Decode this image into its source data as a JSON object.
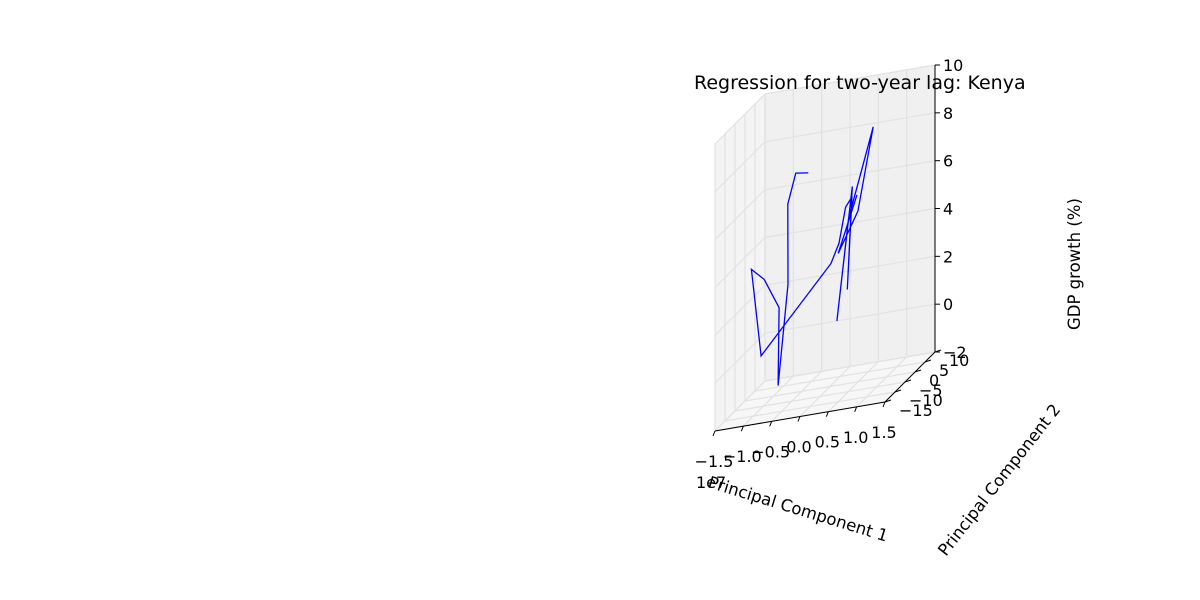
{
  "title": "Regression for two-year lag: Kenya",
  "chart_data": {
    "type": "line",
    "projection": "3d",
    "title": "Regression for two-year lag: Kenya",
    "xlabel": "Principal Component 1",
    "ylabel": "Principal Component 2",
    "zlabel": "GDP growth (%)",
    "x_offset_label": "1e7",
    "xlim": [
      -1.5,
      1.5
    ],
    "ylim": [
      -15,
      10
    ],
    "zlim": [
      -2,
      10
    ],
    "xticks": [
      "−1.5",
      "−1.0",
      "−0.5",
      "0.0",
      "0.5",
      "1.0",
      "1.5"
    ],
    "yticks": [
      "−15",
      "−10",
      "−5",
      "0",
      "5",
      "10"
    ],
    "zticks": [
      "−2",
      "0",
      "2",
      "4",
      "6",
      "8",
      "10"
    ],
    "grid": true,
    "series": [
      {
        "color": "#0000ff",
        "points": [
          [
            -0.63,
            7.0,
            6.6
          ],
          [
            -0.79,
            5.3,
            6.8
          ],
          [
            -0.91,
            4.7,
            5.6
          ],
          [
            -0.83,
            2.5,
            2.4
          ],
          [
            -0.92,
            0.1,
            -1.6
          ],
          [
            -0.98,
            2.3,
            1.5
          ],
          [
            -1.44,
            7.9,
            2.4
          ],
          [
            -1.62,
            6.6,
            3.0
          ],
          [
            -1.1,
            -3.3,
            0.0
          ],
          [
            0.1,
            -2.4,
            3.3
          ],
          [
            0.3,
            -4.0,
            4.2
          ],
          [
            0.23,
            1.3,
            5.3
          ],
          [
            0.35,
            1.1,
            5.7
          ],
          [
            0.34,
            -1.0,
            2.0
          ],
          [
            0.34,
            1.5,
            6.1
          ],
          [
            0.28,
            -4.5,
            1.0
          ],
          [
            0.39,
            -1.8,
            5.0
          ],
          [
            0.79,
            -0.8,
            8.6
          ],
          [
            0.68,
            -5.3,
            5.5
          ],
          [
            0.55,
            -11.5,
            4.3
          ],
          [
            0.77,
            -8.3,
            6.4
          ]
        ]
      }
    ]
  }
}
